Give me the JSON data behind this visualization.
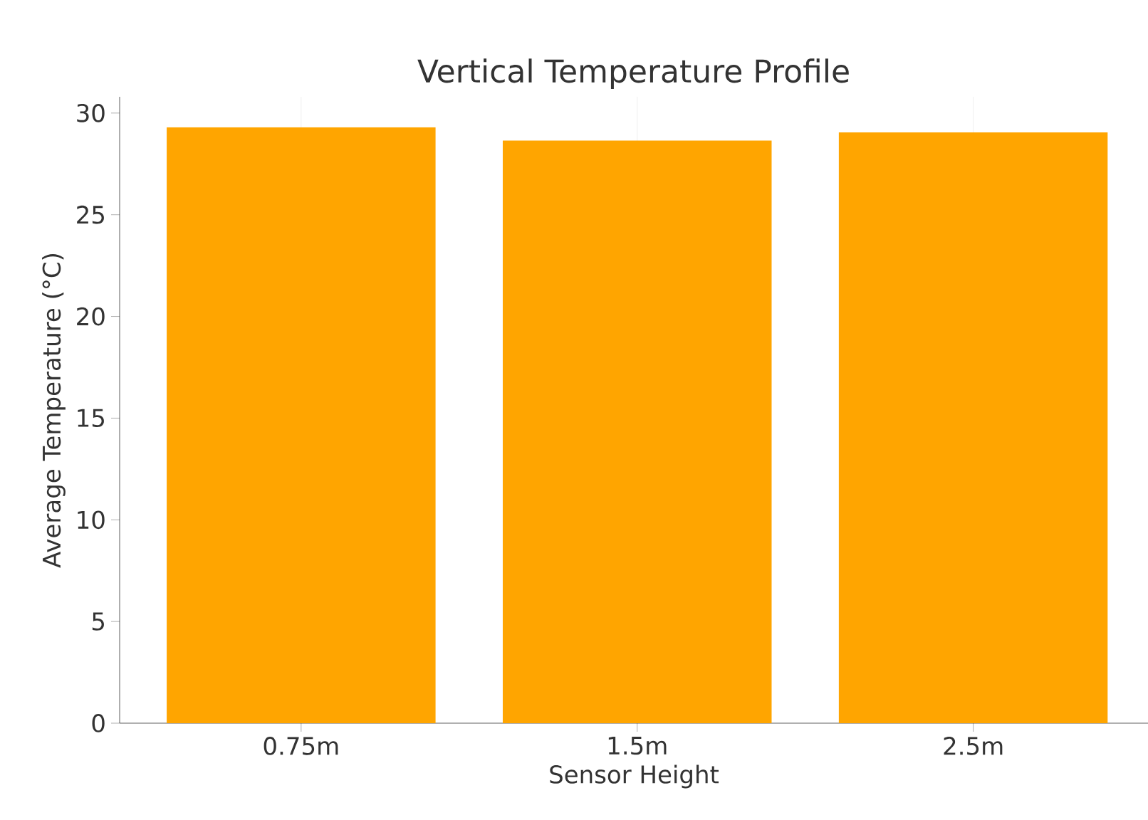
{
  "chart_data": {
    "type": "bar",
    "title": "Vertical Temperature Profile",
    "xlabel": "Sensor Height",
    "ylabel": "Average Temperature (°C)",
    "categories": [
      "0.75m",
      "1.5m",
      "2.5m"
    ],
    "values": [
      29.3,
      28.65,
      29.05
    ],
    "color": "#ffa500",
    "ylim": [
      0,
      30.8
    ],
    "yticks": [
      0,
      5,
      10,
      15,
      20,
      25,
      30
    ],
    "grid": "x"
  }
}
